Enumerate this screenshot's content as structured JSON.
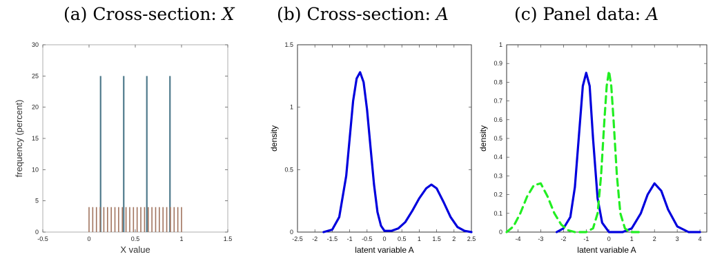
{
  "panels": [
    {
      "title_prefix": "(a) Cross-section: ",
      "title_var": "X"
    },
    {
      "title_prefix": "(b) Cross-section: ",
      "title_var": "A"
    },
    {
      "title_prefix": "(c) Panel data: ",
      "title_var": "A"
    }
  ],
  "chart_data": [
    {
      "type": "bar",
      "title": "(a) Cross-section: X",
      "xlabel": "X value",
      "ylabel": "frequency (percent)",
      "xlim": [
        -0.5,
        1.5
      ],
      "ylim": [
        0,
        30
      ],
      "xticks": [
        -0.5,
        0,
        0.5,
        1,
        1.5
      ],
      "xtick_labels": [
        "-0.5",
        "0",
        "0.5",
        "1",
        "1.5"
      ],
      "yticks": [
        0,
        5,
        10,
        15,
        20,
        25,
        30
      ],
      "ytick_labels": [
        "0",
        "5",
        "10",
        "15",
        "20",
        "25",
        "30"
      ],
      "series": [
        {
          "color": "#4f7a8c",
          "x": [
            0.125,
            0.375,
            0.625,
            0.875
          ],
          "values": [
            25,
            25,
            25,
            25
          ]
        },
        {
          "color": "#a0735e",
          "x": [
            0.0,
            0.04,
            0.08,
            0.12,
            0.16,
            0.2,
            0.24,
            0.28,
            0.32,
            0.36,
            0.4,
            0.44,
            0.48,
            0.52,
            0.56,
            0.6,
            0.64,
            0.68,
            0.72,
            0.76,
            0.8,
            0.84,
            0.88,
            0.92,
            0.96,
            1.0
          ],
          "values": [
            4,
            4,
            4,
            4,
            4,
            4,
            4,
            4,
            4,
            4,
            4,
            4,
            4,
            4,
            4,
            4,
            4,
            4,
            4,
            4,
            4,
            4,
            4,
            4,
            4,
            4
          ]
        }
      ]
    },
    {
      "type": "line",
      "title": "(b) Cross-section: A",
      "xlabel": "latent variable A",
      "ylabel": "density",
      "xlim": [
        -2.5,
        2.5
      ],
      "ylim": [
        0,
        1.5
      ],
      "xticks": [
        -2.5,
        -2,
        -1.5,
        -1,
        -0.5,
        0,
        0.5,
        1,
        1.5,
        2,
        2.5
      ],
      "xtick_labels": [
        "-2.5",
        "-2",
        "-1.5",
        "-1",
        "-0.5",
        "0",
        "0.5",
        "1",
        "1.5",
        "2",
        "2.5"
      ],
      "yticks": [
        0,
        0.5,
        1,
        1.5
      ],
      "ytick_labels": [
        "0",
        "0.5",
        "1",
        "1.5"
      ],
      "series": [
        {
          "color": "#0000dd",
          "style": "solid",
          "x": [
            -1.75,
            -1.5,
            -1.3,
            -1.1,
            -1.0,
            -0.9,
            -0.8,
            -0.7,
            -0.6,
            -0.5,
            -0.4,
            -0.3,
            -0.2,
            -0.1,
            0.0,
            0.2,
            0.4,
            0.6,
            0.8,
            1.0,
            1.2,
            1.35,
            1.5,
            1.7,
            1.9,
            2.1,
            2.3,
            2.5
          ],
          "y": [
            0.0,
            0.02,
            0.12,
            0.45,
            0.75,
            1.05,
            1.23,
            1.28,
            1.2,
            0.98,
            0.68,
            0.38,
            0.16,
            0.05,
            0.01,
            0.01,
            0.03,
            0.08,
            0.17,
            0.27,
            0.35,
            0.38,
            0.35,
            0.24,
            0.12,
            0.04,
            0.01,
            0.0
          ]
        }
      ]
    },
    {
      "type": "line",
      "title": "(c) Panel data: A",
      "xlabel": "latent variable A",
      "ylabel": "density",
      "xlim": [
        -4.5,
        4.3
      ],
      "ylim": [
        0,
        1
      ],
      "xticks": [
        -4,
        -3,
        -2,
        -1,
        0,
        1,
        2,
        3,
        4
      ],
      "xtick_labels": [
        "-4",
        "-3",
        "-2",
        "-1",
        "0",
        "1",
        "2",
        "3",
        "4"
      ],
      "yticks": [
        0,
        0.1,
        0.2,
        0.3,
        0.4,
        0.5,
        0.6,
        0.7,
        0.8,
        0.9,
        1
      ],
      "ytick_labels": [
        "0",
        "0.1",
        "0.2",
        "0.3",
        "0.4",
        "0.5",
        "0.6",
        "0.7",
        "0.8",
        "0.9",
        "1"
      ],
      "series": [
        {
          "color": "#0000dd",
          "style": "solid",
          "x": [
            -2.3,
            -2.0,
            -1.7,
            -1.5,
            -1.3,
            -1.15,
            -1.0,
            -0.85,
            -0.7,
            -0.5,
            -0.3,
            0.0,
            0.3,
            0.6,
            1.0,
            1.4,
            1.7,
            2.0,
            2.3,
            2.6,
            3.0,
            3.5,
            4.0
          ],
          "y": [
            0.0,
            0.02,
            0.08,
            0.24,
            0.55,
            0.78,
            0.85,
            0.78,
            0.5,
            0.18,
            0.05,
            0.0,
            0.0,
            0.0,
            0.02,
            0.1,
            0.2,
            0.26,
            0.22,
            0.12,
            0.03,
            0.0,
            0.0
          ]
        },
        {
          "color": "#22ee22",
          "style": "dashed",
          "x": [
            -4.5,
            -4.2,
            -3.9,
            -3.6,
            -3.3,
            -3.0,
            -2.7,
            -2.4,
            -2.1,
            -1.8,
            -1.5,
            -1.3,
            -1.0,
            -0.7,
            -0.5,
            -0.35,
            -0.2,
            -0.1,
            0.0,
            0.1,
            0.2,
            0.35,
            0.5,
            0.7,
            0.9,
            1.2,
            1.5
          ],
          "y": [
            0.0,
            0.03,
            0.1,
            0.19,
            0.25,
            0.26,
            0.19,
            0.1,
            0.04,
            0.01,
            0.0,
            0.0,
            0.0,
            0.02,
            0.1,
            0.3,
            0.6,
            0.78,
            0.86,
            0.78,
            0.6,
            0.3,
            0.1,
            0.02,
            0.0,
            0.0,
            0.0
          ]
        }
      ]
    }
  ]
}
